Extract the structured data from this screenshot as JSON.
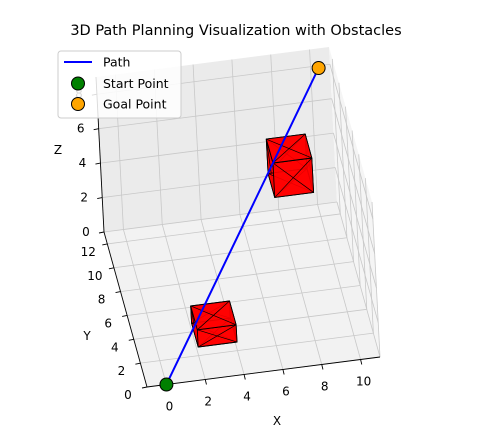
{
  "chart_data": {
    "type": "line3d",
    "title": "3D Path Planning Visualization with Obstacles",
    "xlabel": "X",
    "ylabel": "Y",
    "zlabel": "Z",
    "x_ticks": [
      "0",
      "2",
      "4",
      "6",
      "8",
      "10"
    ],
    "y_ticks": [
      "0",
      "2",
      "4",
      "6",
      "8",
      "10",
      "12"
    ],
    "z_ticks": [
      "0",
      "2",
      "4",
      "6",
      "8"
    ],
    "xlim": [
      -1,
      11
    ],
    "ylim": [
      0,
      13
    ],
    "zlim": [
      0,
      9
    ],
    "grid": true,
    "legend_position": "top-left",
    "series": [
      {
        "name": "Path",
        "color": "#0000ff",
        "points": [
          {
            "x": 0,
            "y": 0,
            "z": 0
          },
          {
            "x": 5,
            "y": 5,
            "z": 5
          },
          {
            "x": 10,
            "y": 10,
            "z": 10
          }
        ]
      }
    ],
    "markers": [
      {
        "name": "Start Point",
        "color": "#008000",
        "x": 0,
        "y": 0,
        "z": 0
      },
      {
        "name": "Goal Point",
        "color": "#ffa500",
        "x": 10,
        "y": 10,
        "z": 10
      }
    ],
    "obstacles": [
      {
        "color": "#ff0000",
        "center": [
          3,
          3,
          1
        ],
        "size": [
          2,
          2,
          1
        ]
      },
      {
        "color": "#ff0000",
        "center": [
          8,
          8,
          6
        ],
        "size": [
          2,
          2,
          2
        ]
      }
    ]
  }
}
